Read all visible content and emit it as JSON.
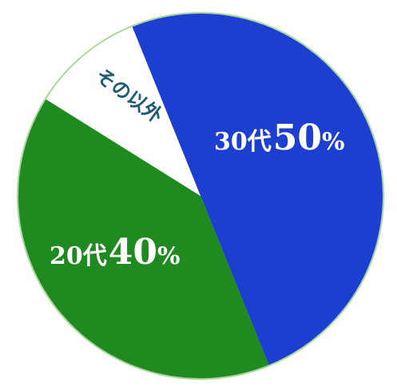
{
  "chart_data": {
    "type": "pie",
    "categories": [
      "30代",
      "20代",
      "その以外"
    ],
    "values": [
      50,
      40,
      10
    ],
    "unit": "%",
    "colors": [
      "#1d3fd0",
      "#1f8a1f",
      "#ffffff"
    ],
    "outline_color": "#a9d89a",
    "legend": "none"
  }
}
